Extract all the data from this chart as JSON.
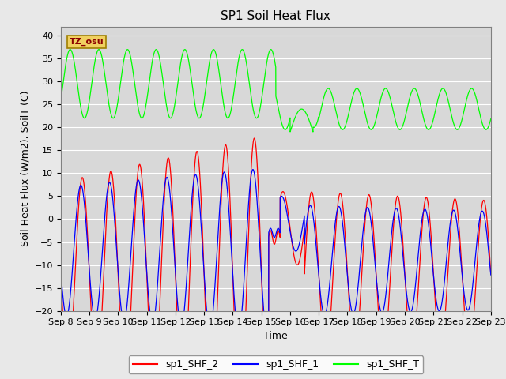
{
  "title": "SP1 Soil Heat Flux",
  "xlabel": "Time",
  "ylabel": "Soil Heat Flux (W/m2), SoilT (C)",
  "ylim": [
    -20,
    42
  ],
  "yticks": [
    -20,
    -15,
    -10,
    -5,
    0,
    5,
    10,
    15,
    20,
    25,
    30,
    35,
    40
  ],
  "xtick_labels": [
    "Sep 8",
    "Sep 9",
    "Sep 10",
    "Sep 11",
    "Sep 12",
    "Sep 13",
    "Sep 14",
    "Sep 15",
    "Sep 16",
    "Sep 17",
    "Sep 18",
    "Sep 19",
    "Sep 20",
    "Sep 21",
    "Sep 22",
    "Sep 23"
  ],
  "legend_labels": [
    "sp1_SHF_2",
    "sp1_SHF_1",
    "sp1_SHF_T"
  ],
  "tz_label": "TZ_osu",
  "bg_color": "#d8d8d8",
  "fig_bg": "#e8e8e8",
  "title_fontsize": 11,
  "axis_label_fontsize": 9,
  "tick_fontsize": 8
}
